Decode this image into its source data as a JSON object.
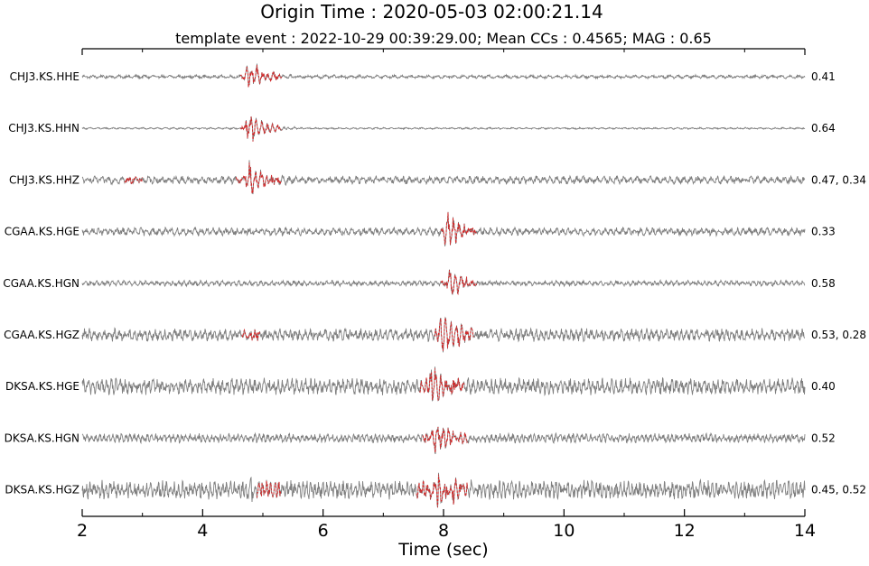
{
  "chart_data": {
    "type": "line",
    "title": "Origin Time : 2020-05-03 02:00:21.14",
    "subtitle": "template event : 2022-10-29 00:39:29.00; Mean CCs : 0.4565; MAG : 0.65",
    "xlabel": "Time (sec)",
    "xlim": [
      2,
      14
    ],
    "xticks": [
      "2",
      "4",
      "6",
      "8",
      "10",
      "12",
      "14"
    ],
    "grid": false,
    "colors": {
      "trace": "#7f7f7f",
      "template": "#d62728"
    },
    "traces": [
      {
        "station": "CHJ3.KS.HHE",
        "cc": "0.41",
        "noise": 0.1,
        "events": [
          {
            "onset": 4.7,
            "duration": 0.6,
            "amplitude": 0.95
          }
        ],
        "templates": [
          {
            "start": 4.62,
            "end": 5.32
          }
        ]
      },
      {
        "station": "CHJ3.KS.HHN",
        "cc": "0.64",
        "noise": 0.05,
        "events": [
          {
            "onset": 4.7,
            "duration": 0.6,
            "amplitude": 0.95
          }
        ],
        "templates": [
          {
            "start": 4.62,
            "end": 5.32
          }
        ]
      },
      {
        "station": "CHJ3.KS.HHZ",
        "cc": "0.47, 0.34",
        "noise": 0.22,
        "events": [
          {
            "onset": 4.7,
            "duration": 0.6,
            "amplitude": 1.0
          }
        ],
        "templates": [
          {
            "start": 2.7,
            "end": 3.0
          },
          {
            "start": 4.55,
            "end": 5.3
          }
        ]
      },
      {
        "station": "CGAA.KS.HGE",
        "cc": "0.33",
        "noise": 0.22,
        "events": [
          {
            "onset": 8.0,
            "duration": 0.7,
            "amplitude": 0.9
          }
        ],
        "templates": [
          {
            "start": 7.95,
            "end": 8.55
          }
        ]
      },
      {
        "station": "CGAA.KS.HGN",
        "cc": "0.58",
        "noise": 0.15,
        "events": [
          {
            "onset": 8.05,
            "duration": 0.6,
            "amplitude": 0.95
          }
        ],
        "templates": [
          {
            "start": 7.95,
            "end": 8.55
          }
        ]
      },
      {
        "station": "CGAA.KS.HGZ",
        "cc": "0.53, 0.28",
        "noise": 0.35,
        "events": [
          {
            "onset": 7.9,
            "duration": 0.8,
            "amplitude": 1.0
          }
        ],
        "templates": [
          {
            "start": 4.65,
            "end": 4.95
          },
          {
            "start": 7.85,
            "end": 8.5
          }
        ]
      },
      {
        "station": "DKSA.KS.HGE",
        "cc": "0.40",
        "noise": 0.45,
        "events": [
          {
            "onset": 7.75,
            "duration": 0.6,
            "amplitude": 1.0
          }
        ],
        "templates": [
          {
            "start": 7.6,
            "end": 8.35
          }
        ]
      },
      {
        "station": "DKSA.KS.HGN",
        "cc": "0.52",
        "noise": 0.25,
        "events": [
          {
            "onset": 7.8,
            "duration": 0.6,
            "amplitude": 1.0
          }
        ],
        "templates": [
          {
            "start": 7.65,
            "end": 8.4
          }
        ]
      },
      {
        "station": "DKSA.KS.HGZ",
        "cc": "0.45, 0.52",
        "noise": 0.5,
        "events": [
          {
            "onset": 4.7,
            "duration": 0.3,
            "amplitude": 0.55
          },
          {
            "onset": 7.75,
            "duration": 0.7,
            "amplitude": 1.0
          }
        ],
        "templates": [
          {
            "start": 4.9,
            "end": 5.3
          },
          {
            "start": 7.55,
            "end": 8.4
          }
        ]
      }
    ]
  }
}
